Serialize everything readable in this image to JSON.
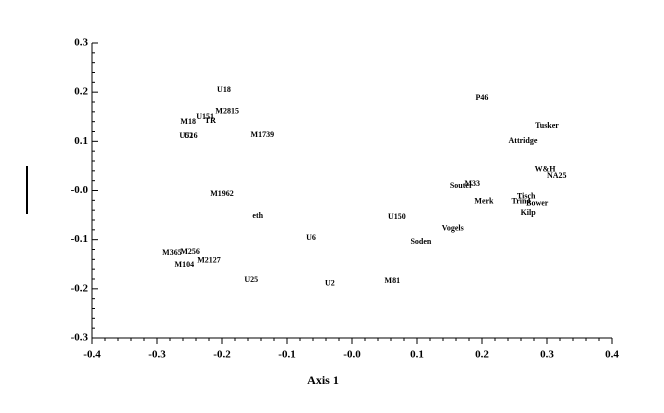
{
  "chart_data": {
    "type": "scatter",
    "x_label": "Axis 1",
    "labels": [
      "U18",
      "P46",
      "M2815",
      "U151",
      "TR",
      "M18",
      "Tusker",
      "U52",
      "U16",
      "M1739",
      "Attridge",
      "W&H",
      "NA25",
      "Souter",
      "M33",
      "M1962",
      "Tisch",
      "Trin4",
      "Merk",
      "Bower",
      "Kilp",
      "eth",
      "U150",
      "Vogels",
      "U6",
      "Soden",
      "M365",
      "M256",
      "M2127",
      "M104",
      "U25",
      "U2",
      "M81"
    ],
    "x": [
      -0.197,
      0.2,
      -0.192,
      -0.226,
      -0.218,
      -0.252,
      0.3,
      -0.255,
      -0.248,
      -0.138,
      0.263,
      0.297,
      0.315,
      0.168,
      0.185,
      -0.2,
      0.268,
      0.26,
      0.203,
      0.285,
      0.271,
      -0.145,
      0.069,
      0.155,
      -0.063,
      0.106,
      -0.277,
      -0.249,
      -0.22,
      -0.258,
      -0.155,
      -0.034,
      0.062
    ],
    "values": [
      0.204,
      0.188,
      0.16,
      0.149,
      0.141,
      0.139,
      0.131,
      0.111,
      0.111,
      0.113,
      0.1,
      0.042,
      0.029,
      0.009,
      0.013,
      -0.007,
      -0.013,
      -0.023,
      -0.023,
      -0.027,
      -0.046,
      -0.052,
      -0.054,
      -0.078,
      -0.097,
      -0.105,
      -0.127,
      -0.125,
      -0.143,
      -0.152,
      -0.182,
      -0.19,
      -0.184
    ],
    "xlim": [
      -0.4,
      0.4
    ],
    "xticks": [
      -0.4,
      -0.3,
      -0.2,
      -0.1,
      {
        "value": 0,
        "label": "-0.0"
      },
      0.1,
      0.2,
      0.3,
      0.4
    ],
    "ylim": [
      -0.3,
      0.3
    ],
    "yticks": [
      -0.3,
      -0.2,
      -0.1,
      {
        "value": 0,
        "label": "-0.0"
      },
      0.1,
      0.2,
      0.3
    ],
    "color": "#000000"
  }
}
